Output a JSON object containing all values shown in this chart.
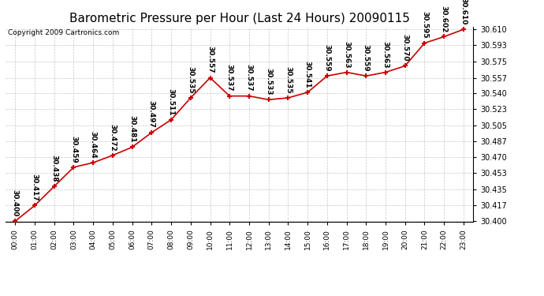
{
  "title": "Barometric Pressure per Hour (Last 24 Hours) 20090115",
  "copyright": "Copyright 2009 Cartronics.com",
  "hours": [
    0,
    1,
    2,
    3,
    4,
    5,
    6,
    7,
    8,
    9,
    10,
    11,
    12,
    13,
    14,
    15,
    16,
    17,
    18,
    19,
    20,
    21,
    22,
    23
  ],
  "x_labels": [
    "00:00",
    "01:00",
    "02:00",
    "03:00",
    "04:00",
    "05:00",
    "06:00",
    "07:00",
    "08:00",
    "09:00",
    "10:00",
    "11:00",
    "12:00",
    "13:00",
    "14:00",
    "15:00",
    "16:00",
    "17:00",
    "18:00",
    "19:00",
    "20:00",
    "21:00",
    "22:00",
    "23:00"
  ],
  "values": [
    30.4,
    30.417,
    30.438,
    30.459,
    30.464,
    30.472,
    30.481,
    30.497,
    30.511,
    30.535,
    30.557,
    30.537,
    30.537,
    30.533,
    30.535,
    30.541,
    30.559,
    30.563,
    30.559,
    30.563,
    30.57,
    30.595,
    30.602,
    30.61
  ],
  "ylim_min": 30.4,
  "ylim_max": 30.61,
  "yticks": [
    30.4,
    30.417,
    30.435,
    30.453,
    30.47,
    30.487,
    30.505,
    30.523,
    30.54,
    30.557,
    30.575,
    30.593,
    30.61
  ],
  "line_color": "#cc0000",
  "marker_color": "#cc0000",
  "marker_style": "+",
  "bg_color": "#ffffff",
  "grid_color": "#c8c8c8",
  "title_fontsize": 11,
  "copyright_fontsize": 6.5,
  "label_fontsize": 6.5,
  "tick_fontsize": 7,
  "xlabel_fontsize": 6.5
}
